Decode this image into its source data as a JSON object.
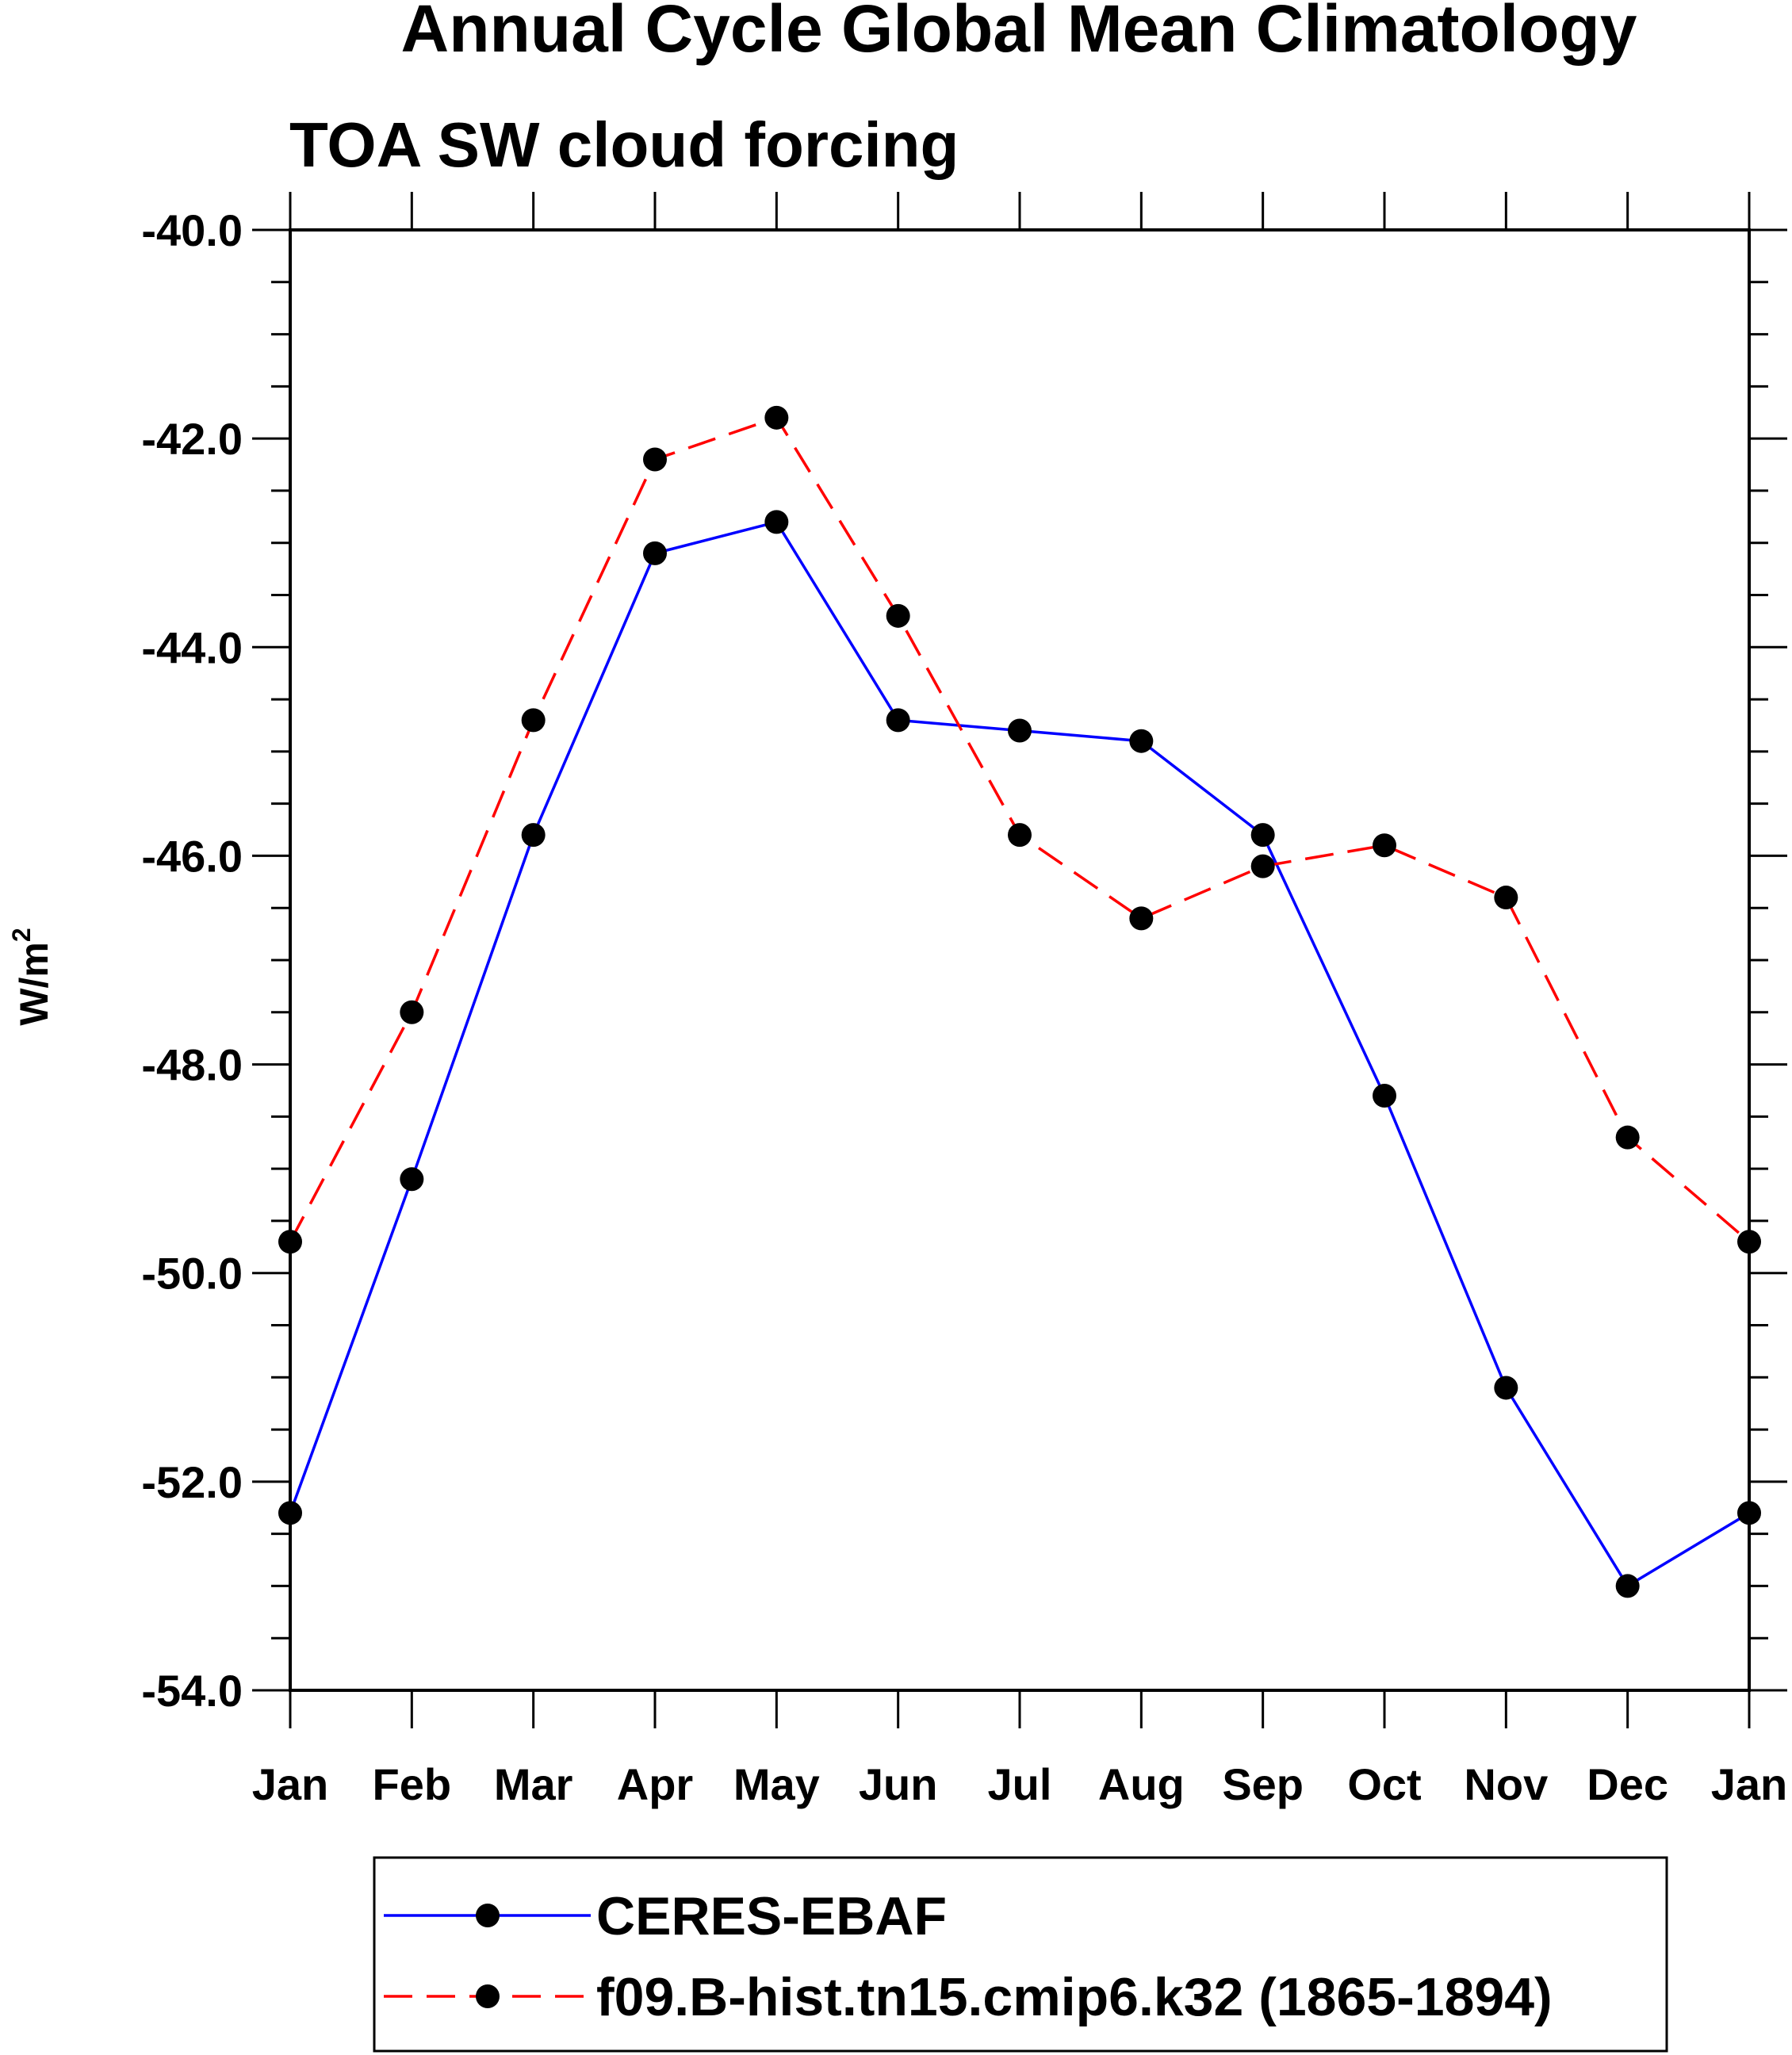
{
  "chart_data": {
    "type": "line",
    "title": "Annual Cycle Global Mean Climatology",
    "subtitle": "TOA SW cloud forcing",
    "xlabel": "",
    "ylabel": "W/m",
    "ylabel_superscript": "2",
    "categories": [
      "Jan",
      "Feb",
      "Mar",
      "Apr",
      "May",
      "Jun",
      "Jul",
      "Aug",
      "Sep",
      "Oct",
      "Nov",
      "Dec",
      "Jan"
    ],
    "ylim": [
      -54.0,
      -40.0
    ],
    "yticks": [
      -54.0,
      -52.0,
      -50.0,
      -48.0,
      -46.0,
      -44.0,
      -42.0,
      -40.0
    ],
    "ytick_labels": [
      "-54.0",
      "-52.0",
      "-50.0",
      "-48.0",
      "-46.0",
      "-44.0",
      "-42.0",
      "-40.0"
    ],
    "grid": false,
    "legend_position": "bottom",
    "series": [
      {
        "name": "CERES-EBAF",
        "color": "#0000ff",
        "line_style": "solid",
        "marker": "filled-circle",
        "values": [
          -52.3,
          -49.1,
          -45.8,
          -43.1,
          -42.8,
          -44.7,
          -44.8,
          -44.9,
          -45.8,
          -48.3,
          -51.1,
          -53.0,
          -52.3
        ]
      },
      {
        "name": "f09.B-hist.tn15.cmip6.k32 (1865-1894)",
        "color": "#ff0000",
        "line_style": "dashed",
        "marker": "filled-circle",
        "values": [
          -49.7,
          -47.5,
          -44.7,
          -42.2,
          -41.8,
          -43.7,
          -45.8,
          -46.6,
          -46.1,
          -45.9,
          -46.4,
          -48.7,
          -49.7
        ]
      }
    ]
  }
}
